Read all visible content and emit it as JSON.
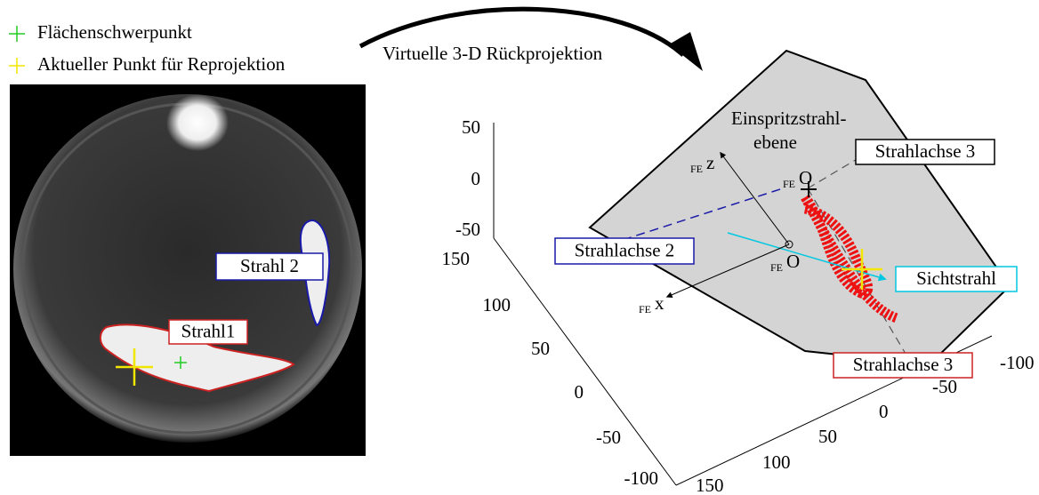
{
  "legend": [
    {
      "label": "Flächenschwerpunkt",
      "color": "#22cc22"
    },
    {
      "label": "Aktueller Punkt für Reprojektion",
      "color": "#f2e600"
    }
  ],
  "arrow_label": "Virtuelle 3-D Rückprojektion",
  "image": {
    "labels": [
      {
        "text": "Strahl 2",
        "border": "#1a1aa8"
      },
      {
        "text": "Strahl1",
        "border": "#cc2222"
      }
    ]
  },
  "plot": {
    "plane_label": [
      "Einspritzstrahl-",
      "ebene"
    ],
    "callouts": [
      {
        "text": "Strahlachse 3",
        "border": "#000000"
      },
      {
        "text": "Strahlachse 2",
        "border": "#1a1aa8"
      },
      {
        "text": "Sichtstrahl",
        "border": "#00c8e0"
      },
      {
        "text": "Strahlachse 3",
        "border": "#cc2222"
      }
    ],
    "frame": {
      "subscript": "FE",
      "z": "z",
      "x": "x",
      "origin": "O"
    },
    "z_ticks": [
      50,
      0,
      -50
    ],
    "y_ticks": [
      150,
      100,
      50,
      0,
      -50,
      -100
    ],
    "x_ticks": [
      -100,
      -50,
      0,
      50,
      100,
      150
    ]
  }
}
